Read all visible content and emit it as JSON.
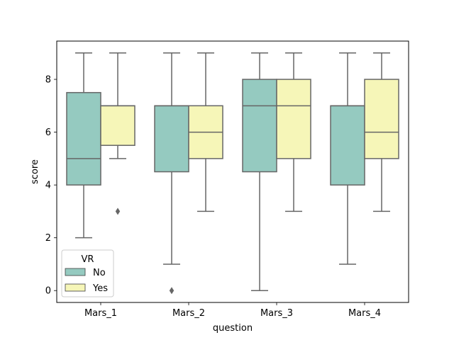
{
  "chart_data": {
    "type": "box",
    "xlabel": "question",
    "ylabel": "score",
    "ylim": [
      -0.45,
      9.45
    ],
    "yticks": [
      0,
      2,
      4,
      6,
      8
    ],
    "categories": [
      "Mars_1",
      "Mars_2",
      "Mars_3",
      "Mars_4"
    ],
    "legend": {
      "title": "VR",
      "position": "lower-left"
    },
    "series": [
      {
        "name": "No",
        "color": "#95cac0",
        "boxes": [
          {
            "whislo": 2,
            "q1": 4,
            "med": 5,
            "q3": 7.5,
            "whishi": 9,
            "fliers": []
          },
          {
            "whislo": 1,
            "q1": 4.5,
            "med": 7,
            "q3": 7,
            "whishi": 9,
            "fliers": [
              0
            ]
          },
          {
            "whislo": 0,
            "q1": 4.5,
            "med": 7,
            "q3": 8,
            "whishi": 9,
            "fliers": []
          },
          {
            "whislo": 1,
            "q1": 4,
            "med": 7,
            "q3": 7,
            "whishi": 9,
            "fliers": []
          }
        ]
      },
      {
        "name": "Yes",
        "color": "#f6f6b8",
        "boxes": [
          {
            "whislo": 5,
            "q1": 5.5,
            "med": 7,
            "q3": 7,
            "whishi": 9,
            "fliers": [
              3
            ]
          },
          {
            "whislo": 3,
            "q1": 5,
            "med": 6,
            "q3": 7,
            "whishi": 9,
            "fliers": []
          },
          {
            "whislo": 3,
            "q1": 5,
            "med": 7,
            "q3": 8,
            "whishi": 9,
            "fliers": []
          },
          {
            "whislo": 3,
            "q1": 5,
            "med": 6,
            "q3": 8,
            "whishi": 9,
            "fliers": []
          }
        ]
      }
    ],
    "colors": {
      "line": "#666666",
      "axis": "#000000"
    }
  }
}
